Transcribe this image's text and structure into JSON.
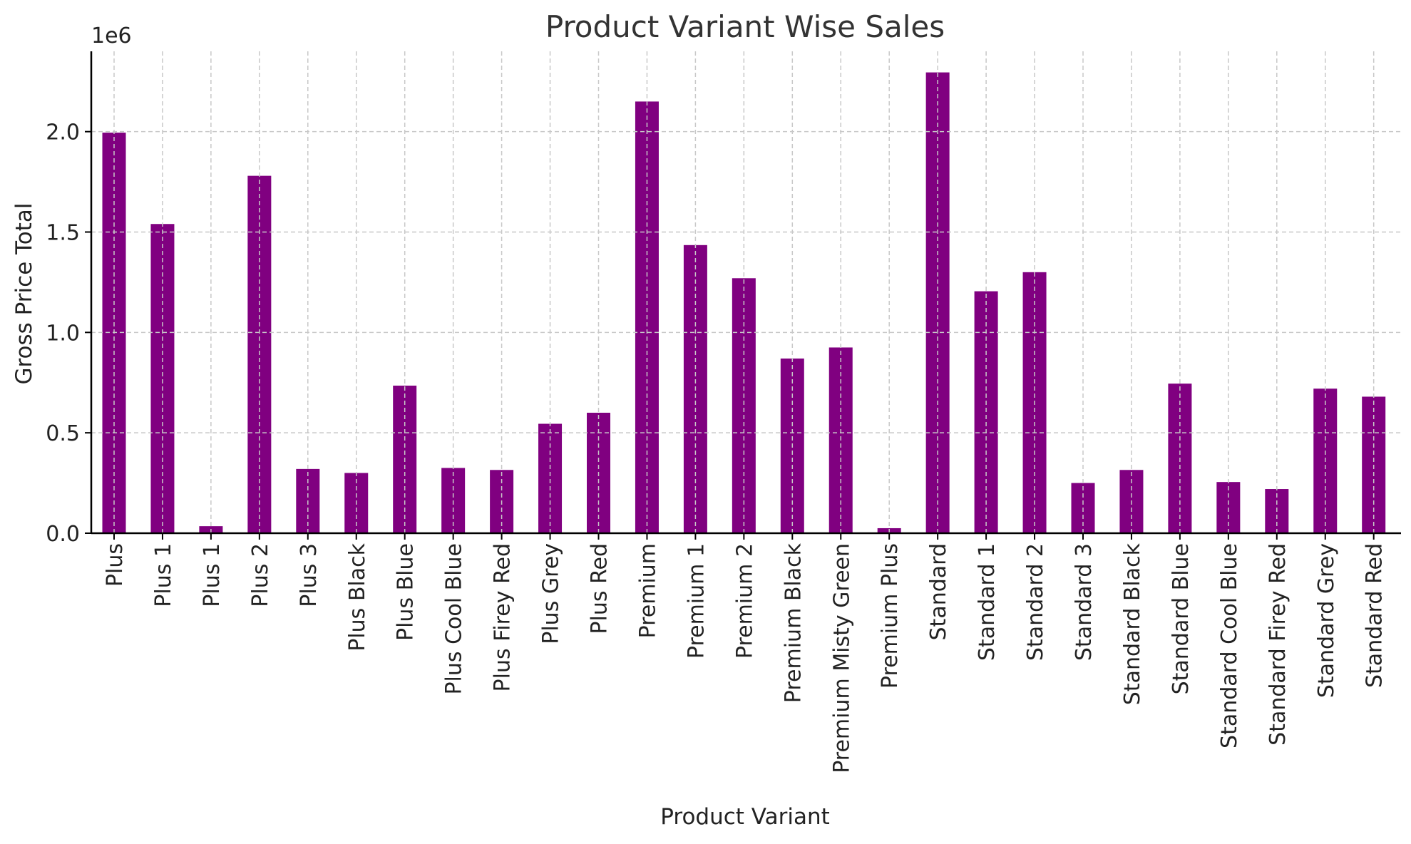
{
  "chart_data": {
    "type": "bar",
    "title": "Product Variant Wise Sales",
    "xlabel": "Product Variant",
    "ylabel": "Gross Price Total",
    "y_scale_label": "1e6",
    "ylim": [
      0,
      2.4
    ],
    "yticks": [
      0.0,
      0.5,
      1.0,
      1.5,
      2.0
    ],
    "ytick_labels": [
      "0.0",
      "0.5",
      "1.0",
      "1.5",
      "2.0"
    ],
    "grid": true,
    "bar_color": "#800080",
    "categories": [
      "Plus",
      "Plus 1",
      "Plus 1",
      "Plus 2",
      "Plus 3",
      "Plus Black",
      "Plus Blue",
      "Plus Cool Blue",
      "Plus Firey Red",
      "Plus Grey",
      "Plus Red",
      "Premium",
      "Premium 1",
      "Premium 2",
      "Premium Black",
      "Premium Misty Green",
      "Premium Plus",
      "Standard",
      "Standard 1",
      "Standard 2",
      "Standard 3",
      "Standard Black",
      "Standard Blue",
      "Standard Cool Blue",
      "Standard Firey Red",
      "Standard Grey",
      "Standard Red"
    ],
    "values": [
      1.995,
      1.54,
      0.035,
      1.78,
      0.32,
      0.3,
      0.735,
      0.325,
      0.315,
      0.545,
      0.6,
      2.15,
      1.435,
      1.27,
      0.87,
      0.925,
      0.025,
      2.295,
      1.205,
      1.3,
      0.25,
      0.315,
      0.745,
      0.255,
      0.22,
      0.72,
      0.68
    ]
  }
}
